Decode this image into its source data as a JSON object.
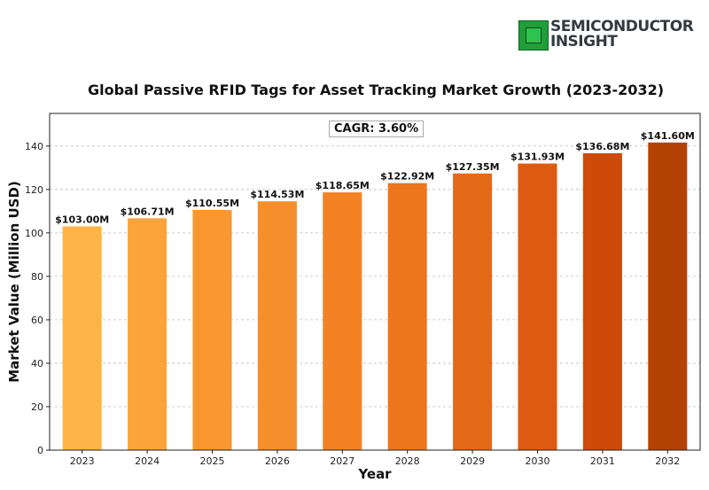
{
  "logo": {
    "line1": "SEMICONDUCTOR",
    "line2": "INSIGHT"
  },
  "chart_data": {
    "type": "bar",
    "title": "Global Passive RFID Tags for Asset Tracking Market Growth (2023-2032)",
    "xlabel": "Year",
    "ylabel": "Market Value (Million USD)",
    "categories": [
      "2023",
      "2024",
      "2025",
      "2026",
      "2027",
      "2028",
      "2029",
      "2030",
      "2031",
      "2032"
    ],
    "values": [
      103.0,
      106.71,
      110.55,
      114.53,
      118.65,
      122.92,
      127.35,
      131.93,
      136.68,
      141.6
    ],
    "data_labels": [
      "$103.00M",
      "$106.71M",
      "$110.55M",
      "$114.53M",
      "$118.65M",
      "$122.92M",
      "$127.35M",
      "$131.93M",
      "$136.68M",
      "$141.60M"
    ],
    "colors": [
      "#fdb446",
      "#fca33a",
      "#f99731",
      "#f68e2b",
      "#f28224",
      "#ec761d",
      "#e56917",
      "#dd5b10",
      "#cd4a08",
      "#b54205"
    ],
    "ylim": [
      0,
      155
    ],
    "yticks": [
      0,
      20,
      40,
      60,
      80,
      100,
      120,
      140
    ],
    "grid": "horizontal-dashed",
    "annotation": "CAGR: 3.60%"
  }
}
